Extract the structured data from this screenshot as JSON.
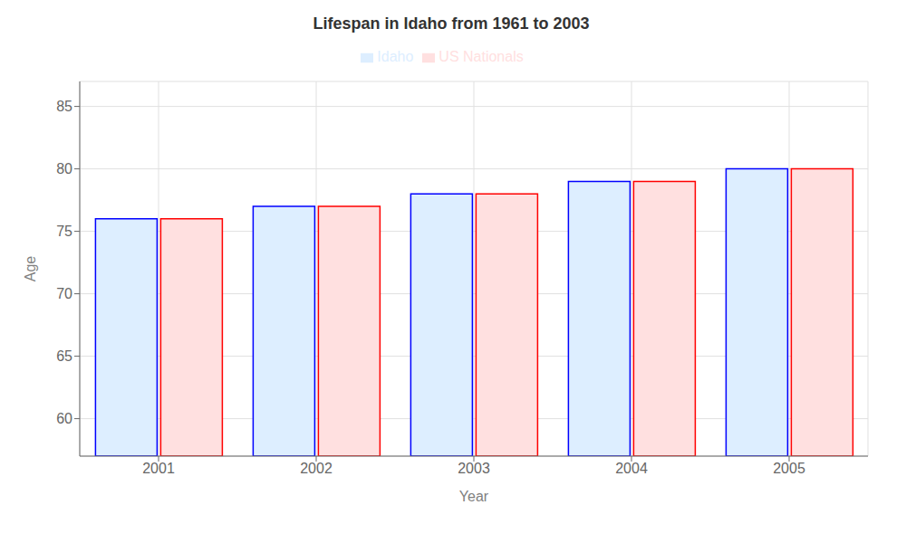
{
  "chart_data": {
    "type": "bar",
    "title": "Lifespan in Idaho from 1961 to 2003",
    "xlabel": "Year",
    "ylabel": "Age",
    "categories": [
      "2001",
      "2002",
      "2003",
      "2004",
      "2005"
    ],
    "series": [
      {
        "name": "Idaho",
        "color": "#ddeeff",
        "edge_color": "#0000ff",
        "values": [
          76,
          77,
          78,
          79,
          80
        ]
      },
      {
        "name": "US Nationals",
        "color": "#ffe0e0",
        "edge_color": "#ff0000",
        "values": [
          76,
          77,
          78,
          79,
          80
        ]
      }
    ],
    "ylim": [
      57,
      87
    ],
    "yticks": [
      60,
      65,
      70,
      75,
      80,
      85
    ],
    "grid": true,
    "legend": "top"
  }
}
